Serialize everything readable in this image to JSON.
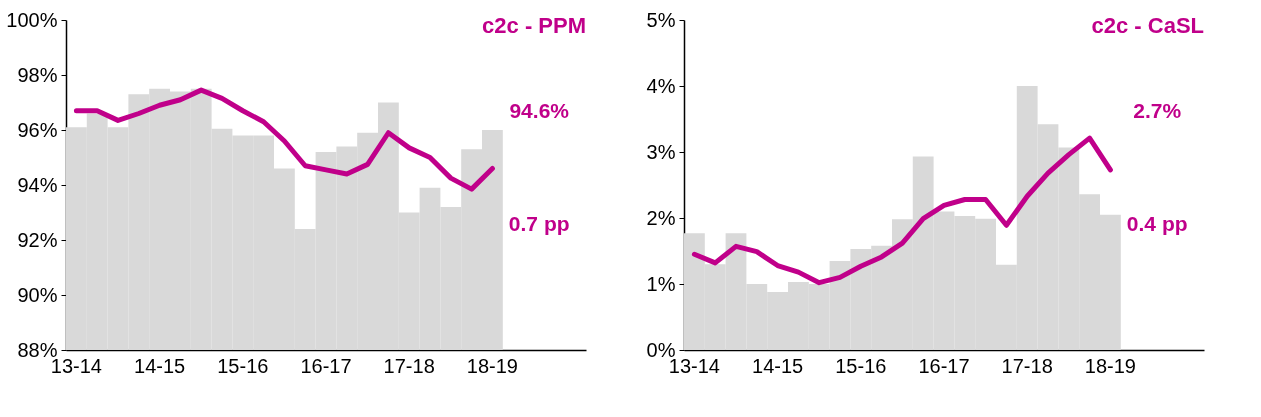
{
  "chart_data": [
    {
      "type": "bar",
      "title": "c2c - PPM",
      "categories": [
        "13-14",
        null,
        null,
        null,
        "14-15",
        null,
        null,
        null,
        "15-16",
        null,
        null,
        null,
        "16-17",
        null,
        null,
        null,
        "17-18",
        null,
        null,
        null,
        "18-19",
        null,
        null,
        null,
        null
      ],
      "series": [
        {
          "type": "bar",
          "color": "#d9d9d9",
          "values": [
            96.1,
            96.6,
            96.1,
            97.3,
            97.5,
            97.4,
            97.5,
            96.05,
            95.8,
            95.8,
            94.6,
            92.4,
            95.2,
            95.4,
            95.9,
            97.0,
            93.0,
            93.9,
            93.2,
            95.3,
            96.0,
            null,
            null,
            null,
            null
          ]
        },
        {
          "type": "line",
          "color": "#c0008a",
          "line_style": "solid",
          "values": [
            96.7,
            96.7,
            96.35,
            96.6,
            96.9,
            97.1,
            97.45,
            97.15,
            96.7,
            96.3,
            95.6,
            94.7,
            94.55,
            94.4,
            94.75,
            95.9,
            95.35,
            95.0,
            94.25,
            93.85,
            94.6,
            null,
            null,
            null,
            null
          ]
        }
      ],
      "ylim": [
        88,
        100
      ],
      "yticks": [
        {
          "value": 88,
          "label": "88%"
        },
        {
          "value": 90,
          "label": "90%"
        },
        {
          "value": 92,
          "label": "92%"
        },
        {
          "value": 94,
          "label": "94%"
        },
        {
          "value": 96,
          "label": "96%"
        },
        {
          "value": 98,
          "label": "98%"
        },
        {
          "value": 100,
          "label": "100%"
        }
      ],
      "annotations": [
        "94.6%",
        "0.7 pp"
      ]
    },
    {
      "type": "bar",
      "title": "c2c - CaSL",
      "categories": [
        "13-14",
        null,
        null,
        null,
        "14-15",
        null,
        null,
        null,
        "15-16",
        null,
        null,
        null,
        "16-17",
        null,
        null,
        null,
        "17-18",
        null,
        null,
        null,
        "18-19",
        null,
        null,
        null,
        null
      ],
      "series": [
        {
          "type": "bar",
          "color": "#d9d9d9",
          "values": [
            1.77,
            1.3,
            1.77,
            1.0,
            0.88,
            1.03,
            1.0,
            1.35,
            1.53,
            1.58,
            1.98,
            2.93,
            2.1,
            2.03,
            1.99,
            1.29,
            4.0,
            3.42,
            3.07,
            2.36,
            2.05,
            null,
            null,
            null,
            null
          ]
        },
        {
          "type": "line",
          "color": "#c0008a",
          "line_style": "solid",
          "values": [
            1.45,
            1.32,
            1.57,
            1.49,
            1.28,
            1.18,
            1.02,
            1.1,
            1.27,
            1.41,
            1.62,
            1.99,
            2.19,
            2.28,
            2.28,
            1.89,
            2.33,
            2.68,
            2.96,
            3.21,
            2.73,
            null,
            null,
            null,
            null
          ]
        }
      ],
      "ylim": [
        0,
        5
      ],
      "yticks": [
        {
          "value": 0,
          "label": "0%"
        },
        {
          "value": 1,
          "label": "1%"
        },
        {
          "value": 2,
          "label": "2%"
        },
        {
          "value": 3,
          "label": "3%"
        },
        {
          "value": 4,
          "label": "4%"
        },
        {
          "value": 5,
          "label": "5%"
        }
      ],
      "annotations": [
        "2.7%",
        "0.4 pp"
      ]
    }
  ]
}
